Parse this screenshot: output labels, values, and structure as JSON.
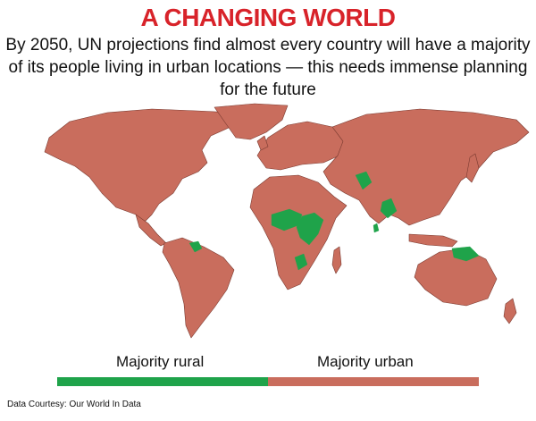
{
  "title": "A CHANGING WORLD",
  "subtitle": "By 2050, UN projections find almost every country will have a majority of its people living in urban locations — this needs immense planning for the future",
  "legend": {
    "rural_label": "Majority rural",
    "urban_label": "Majority urban"
  },
  "credit": "Data Courtesy: Our World In Data",
  "colors": {
    "title": "#d8232a",
    "urban": "#c96d5d",
    "rural": "#1fa34a",
    "border": "#7a3a30",
    "ocean": "#ffffff"
  },
  "map": {
    "categories": [
      "Majority rural",
      "Majority urban"
    ],
    "majority_rural_regions": [
      "Central Africa",
      "East Africa",
      "South Asia",
      "Southeast Asia",
      "Papua New Guinea",
      "Guyana"
    ]
  }
}
